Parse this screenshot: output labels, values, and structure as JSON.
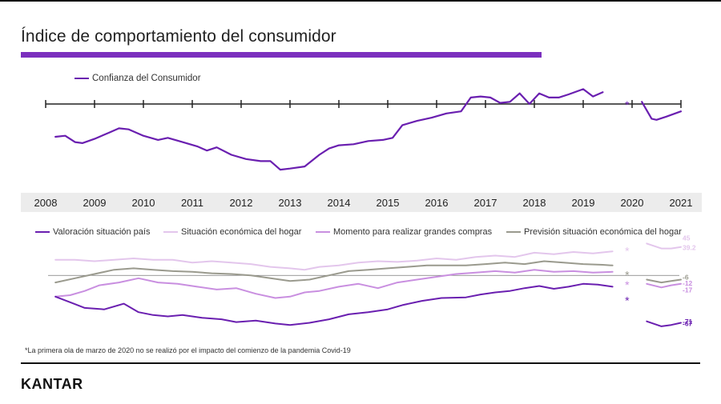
{
  "header": {
    "title": "Índice de comportamiento del consumidor"
  },
  "colors": {
    "title_bar": "#7b2fbe",
    "confianza": "#6a1fb0",
    "valoracion": "#6a1fb0",
    "situacion_hogar": "#e3c6ec",
    "momento_compras": "#c98fe0",
    "prevision": "#9a9a8e",
    "axis": "#222222"
  },
  "footnote": "*La primera ola de marzo de 2020 no se realizó por el impacto del comienzo de la pandemia Covid-19",
  "brand": {
    "logo": "KANTAR"
  },
  "chart_data": [
    {
      "type": "line",
      "legend": "top-left",
      "x_range": [
        2008,
        2021
      ],
      "y_range": [
        30,
        110
      ],
      "tick_labels": [
        "2008",
        "2009",
        "2010",
        "2011",
        "2012",
        "2013",
        "2014",
        "2015",
        "2016",
        "2017",
        "2018",
        "2019",
        "2020",
        "2021"
      ],
      "annotations": [
        {
          "label": "*",
          "x": 2019.9
        }
      ],
      "series": [
        {
          "name": "Confianza del Consumidor",
          "segments": [
            [
              [
                2008.2,
                67
              ],
              [
                2008.4,
                68
              ],
              [
                2008.6,
                62
              ],
              [
                2008.75,
                61
              ],
              [
                2009.0,
                65
              ],
              [
                2009.3,
                71
              ],
              [
                2009.5,
                75
              ],
              [
                2009.7,
                74
              ],
              [
                2010.0,
                68
              ],
              [
                2010.3,
                64
              ],
              [
                2010.5,
                66
              ],
              [
                2010.8,
                62
              ],
              [
                2011.1,
                58
              ],
              [
                2011.3,
                54
              ],
              [
                2011.5,
                57
              ],
              [
                2011.8,
                50
              ],
              [
                2012.1,
                46
              ],
              [
                2012.4,
                44
              ],
              [
                2012.6,
                44
              ],
              [
                2012.8,
                36
              ],
              [
                2013.0,
                37
              ],
              [
                2013.3,
                39
              ],
              [
                2013.6,
                50
              ],
              [
                2013.8,
                56
              ],
              [
                2014.0,
                59
              ],
              [
                2014.3,
                60
              ],
              [
                2014.6,
                63
              ],
              [
                2014.9,
                64
              ],
              [
                2015.1,
                66
              ],
              [
                2015.3,
                78
              ],
              [
                2015.6,
                82
              ],
              [
                2015.9,
                85
              ],
              [
                2016.2,
                89
              ],
              [
                2016.5,
                91
              ],
              [
                2016.7,
                104
              ],
              [
                2016.9,
                105
              ],
              [
                2017.1,
                104
              ],
              [
                2017.3,
                99
              ],
              [
                2017.5,
                100
              ],
              [
                2017.7,
                108
              ],
              [
                2017.9,
                98
              ],
              [
                2018.1,
                108
              ],
              [
                2018.3,
                104
              ],
              [
                2018.5,
                104
              ],
              [
                2018.7,
                107
              ],
              [
                2019.0,
                112
              ],
              [
                2019.2,
                105
              ],
              [
                2019.4,
                109
              ]
            ],
            [
              [
                2020.2,
                100
              ],
              [
                2020.4,
                84
              ],
              [
                2020.5,
                83
              ],
              [
                2020.7,
                86
              ],
              [
                2021.0,
                91
              ]
            ]
          ]
        }
      ]
    },
    {
      "type": "line",
      "legend": "top",
      "x_range": [
        2008,
        2021
      ],
      "y_range": [
        -80,
        50
      ],
      "value_labels": [
        {
          "text": "45",
          "series": "Situación económica del hogar"
        },
        {
          "text": "39.2",
          "series": "Situación económica del hogar"
        },
        {
          "text": "-6",
          "series": "Previsión situación económica del hogar"
        },
        {
          "text": "-12",
          "series": "Momento para realizar grandes compras"
        },
        {
          "text": "-17",
          "series": "Momento para realizar grandes compras"
        },
        {
          "text": "-71",
          "series": "Valoración situación país"
        },
        {
          "text": "-67",
          "series": "Valoración situación país"
        }
      ],
      "series": [
        {
          "name": "Valoración situación país",
          "segments": [
            [
              [
                2008.2,
                -30
              ],
              [
                2008.5,
                -38
              ],
              [
                2008.8,
                -46
              ],
              [
                2009.2,
                -48
              ],
              [
                2009.6,
                -40
              ],
              [
                2009.9,
                -52
              ],
              [
                2010.2,
                -56
              ],
              [
                2010.5,
                -58
              ],
              [
                2010.8,
                -56
              ],
              [
                2011.2,
                -60
              ],
              [
                2011.6,
                -62
              ],
              [
                2011.9,
                -66
              ],
              [
                2012.3,
                -64
              ],
              [
                2012.7,
                -68
              ],
              [
                2013.0,
                -70
              ],
              [
                2013.4,
                -67
              ],
              [
                2013.8,
                -62
              ],
              [
                2014.2,
                -55
              ],
              [
                2014.6,
                -52
              ],
              [
                2015.0,
                -48
              ],
              [
                2015.3,
                -42
              ],
              [
                2015.7,
                -36
              ],
              [
                2016.1,
                -32
              ],
              [
                2016.6,
                -31
              ],
              [
                2016.9,
                -27
              ],
              [
                2017.2,
                -24
              ],
              [
                2017.5,
                -22
              ],
              [
                2017.8,
                -18
              ],
              [
                2018.1,
                -15
              ],
              [
                2018.4,
                -19
              ],
              [
                2018.7,
                -16
              ],
              [
                2019.0,
                -12
              ],
              [
                2019.3,
                -13
              ],
              [
                2019.6,
                -16
              ]
            ],
            [
              [
                2020.3,
                -65
              ],
              [
                2020.6,
                -72
              ],
              [
                2020.8,
                -70
              ],
              [
                2021.0,
                -67
              ]
            ]
          ]
        },
        {
          "name": "Situación económica del hogar",
          "segments": [
            [
              [
                2008.2,
                22
              ],
              [
                2008.6,
                22
              ],
              [
                2009.0,
                20
              ],
              [
                2009.4,
                22
              ],
              [
                2009.8,
                24
              ],
              [
                2010.2,
                22
              ],
              [
                2010.6,
                22
              ],
              [
                2011.0,
                18
              ],
              [
                2011.4,
                20
              ],
              [
                2011.8,
                18
              ],
              [
                2012.2,
                16
              ],
              [
                2012.6,
                12
              ],
              [
                2013.0,
                10
              ],
              [
                2013.3,
                8
              ],
              [
                2013.6,
                12
              ],
              [
                2014.0,
                14
              ],
              [
                2014.4,
                18
              ],
              [
                2014.8,
                20
              ],
              [
                2015.2,
                19
              ],
              [
                2015.6,
                21
              ],
              [
                2016.0,
                24
              ],
              [
                2016.4,
                22
              ],
              [
                2016.8,
                26
              ],
              [
                2017.2,
                28
              ],
              [
                2017.6,
                26
              ],
              [
                2018.0,
                32
              ],
              [
                2018.4,
                30
              ],
              [
                2018.8,
                33
              ],
              [
                2019.2,
                31
              ],
              [
                2019.6,
                34
              ]
            ],
            [
              [
                2020.3,
                45
              ],
              [
                2020.6,
                38
              ],
              [
                2020.8,
                38
              ],
              [
                2021.0,
                40
              ]
            ]
          ]
        },
        {
          "name": "Momento para realizar grandes compras",
          "segments": [
            [
              [
                2008.2,
                -30
              ],
              [
                2008.5,
                -28
              ],
              [
                2008.8,
                -22
              ],
              [
                2009.1,
                -14
              ],
              [
                2009.5,
                -10
              ],
              [
                2009.9,
                -4
              ],
              [
                2010.3,
                -10
              ],
              [
                2010.7,
                -12
              ],
              [
                2011.1,
                -16
              ],
              [
                2011.5,
                -20
              ],
              [
                2011.9,
                -18
              ],
              [
                2012.3,
                -26
              ],
              [
                2012.7,
                -32
              ],
              [
                2013.0,
                -30
              ],
              [
                2013.3,
                -24
              ],
              [
                2013.6,
                -22
              ],
              [
                2014.0,
                -16
              ],
              [
                2014.4,
                -12
              ],
              [
                2014.8,
                -18
              ],
              [
                2015.2,
                -10
              ],
              [
                2015.6,
                -6
              ],
              [
                2016.0,
                -2
              ],
              [
                2016.4,
                2
              ],
              [
                2016.8,
                4
              ],
              [
                2017.2,
                6
              ],
              [
                2017.6,
                4
              ],
              [
                2018.0,
                8
              ],
              [
                2018.4,
                5
              ],
              [
                2018.8,
                6
              ],
              [
                2019.2,
                4
              ],
              [
                2019.6,
                5
              ]
            ],
            [
              [
                2020.3,
                -12
              ],
              [
                2020.6,
                -17
              ],
              [
                2020.8,
                -14
              ],
              [
                2021.0,
                -12
              ]
            ]
          ]
        },
        {
          "name": "Previsión situación económica del hogar",
          "segments": [
            [
              [
                2008.2,
                -10
              ],
              [
                2008.6,
                -4
              ],
              [
                2009.0,
                2
              ],
              [
                2009.4,
                8
              ],
              [
                2009.8,
                10
              ],
              [
                2010.2,
                8
              ],
              [
                2010.6,
                6
              ],
              [
                2011.0,
                5
              ],
              [
                2011.4,
                3
              ],
              [
                2011.8,
                2
              ],
              [
                2012.2,
                0
              ],
              [
                2012.6,
                -4
              ],
              [
                2013.0,
                -8
              ],
              [
                2013.4,
                -6
              ],
              [
                2013.8,
                0
              ],
              [
                2014.2,
                6
              ],
              [
                2014.6,
                8
              ],
              [
                2015.0,
                10
              ],
              [
                2015.4,
                12
              ],
              [
                2015.8,
                14
              ],
              [
                2016.2,
                14
              ],
              [
                2016.6,
                14
              ],
              [
                2017.0,
                16
              ],
              [
                2017.4,
                18
              ],
              [
                2017.8,
                16
              ],
              [
                2018.2,
                20
              ],
              [
                2018.6,
                18
              ],
              [
                2019.0,
                16
              ],
              [
                2019.4,
                15
              ],
              [
                2019.6,
                14
              ]
            ],
            [
              [
                2020.3,
                -6
              ],
              [
                2020.6,
                -10
              ],
              [
                2020.8,
                -8
              ],
              [
                2021.0,
                -6
              ]
            ]
          ]
        }
      ],
      "annotations": [
        {
          "label": "*",
          "series": "Situación económica del hogar",
          "x": 2019.9
        },
        {
          "label": "*",
          "series": "Previsión situación económica del hogar",
          "x": 2019.9
        },
        {
          "label": "*",
          "series": "Momento para realizar grandes compras",
          "x": 2019.9
        },
        {
          "label": "*",
          "series": "Valoración situación país",
          "x": 2019.9
        }
      ]
    }
  ]
}
